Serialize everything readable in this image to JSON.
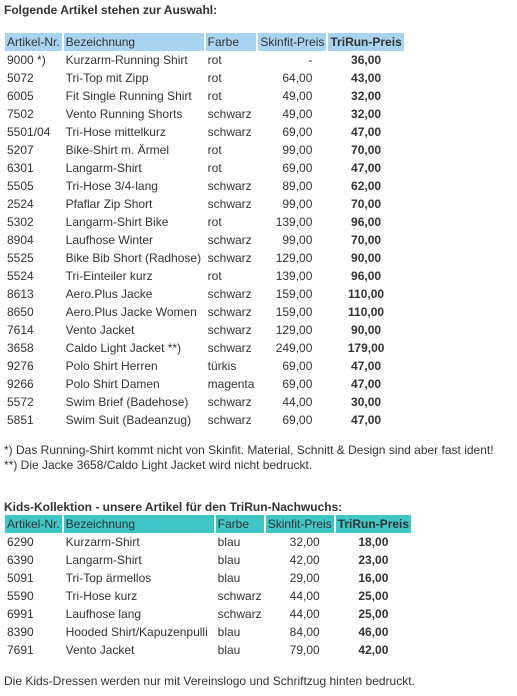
{
  "title1": "Folgende Artikel stehen zur Auswahl:",
  "table1": {
    "header": [
      "Artikel-Nr.",
      "Bezeichnung",
      "Farbe",
      "Skinfit-Preis",
      "TriRun-Preis"
    ],
    "rows": [
      [
        "9000 *)",
        "Kurzarm-Running Shirt",
        "rot",
        "-",
        "36,00"
      ],
      [
        "5072",
        "Tri-Top mit Zipp",
        "rot",
        "64,00",
        "43,00"
      ],
      [
        "6005",
        "Fit Single Running Shirt",
        "rot",
        "49,00",
        "32,00"
      ],
      [
        "7502",
        "Vento Running Shorts",
        "schwarz",
        "49,00",
        "32,00"
      ],
      [
        "5501/04",
        "Tri-Hose mittelkurz",
        "schwarz",
        "69,00",
        "47,00"
      ],
      [
        "5207",
        "Bike-Shirt m. Ärmel",
        "rot",
        "99,00",
        "70,00"
      ],
      [
        "6301",
        "Langarm-Shirt",
        "rot",
        "69,00",
        "47,00"
      ],
      [
        "5505",
        "Tri-Hose 3/4-lang",
        "schwarz",
        "89,00",
        "62,00"
      ],
      [
        "2524",
        "Pfaflar Zip Short",
        "schwarz",
        "99,00",
        "70,00"
      ],
      [
        "5302",
        "Langarm-Shirt Bike",
        "rot",
        "139,00",
        "96,00"
      ],
      [
        "8904",
        "Laufhose Winter",
        "schwarz",
        "99,00",
        "70,00"
      ],
      [
        "5525",
        "Bike Bib Short (Radhose)",
        "schwarz",
        "129,00",
        "90,00"
      ],
      [
        "5524",
        "Tri-Einteiler kurz",
        "rot",
        "139,00",
        "96,00"
      ],
      [
        "8613",
        "Aero.Plus Jacke",
        "schwarz",
        "159,00",
        "110,00"
      ],
      [
        "8650",
        "Aero.Plus Jacke Women",
        "schwarz",
        "159,00",
        "110,00"
      ],
      [
        "7614",
        "Vento Jacket",
        "schwarz",
        "129,00",
        "90,00"
      ],
      [
        "3658",
        "Caldo Light Jacket **)",
        "schwarz",
        "249,00",
        "179,00"
      ],
      [
        "9276",
        "Polo Shirt Herren",
        "türkis",
        "69,00",
        "47,00"
      ],
      [
        "9266",
        "Polo Shirt Damen",
        "magenta",
        "69,00",
        "47,00"
      ],
      [
        "5572",
        "Swim Brief (Badehose)",
        "schwarz",
        "44,00",
        "30,00"
      ],
      [
        "5851",
        "Swim Suit (Badeanzug)",
        "schwarz",
        "69,00",
        "47,00"
      ]
    ]
  },
  "notes": [
    "*) Das Running-Shirt kommt nicht von Skinfit. Material, Schnitt & Design sind aber fast ident!",
    "**) Die Jacke 3658/Caldo Light Jacket wird nicht bedruckt."
  ],
  "title2": "Kids-Kollektion - unsere Artikel für den TriRun-Nachwuchs:",
  "table2": {
    "header": [
      "Artikel-Nr.",
      "Bezeichnung",
      "Farbe",
      "Skinfit-Preis",
      "TriRun-Preis"
    ],
    "rows": [
      [
        "6290",
        "Kurzarm-Shirt",
        "blau",
        "32,00",
        "18,00"
      ],
      [
        "6390",
        "Langarm-Shirt",
        "blau",
        "42,00",
        "23,00"
      ],
      [
        "5091",
        "Tri-Top ärmellos",
        "blau",
        "29,00",
        "16,00"
      ],
      [
        "5590",
        "Tri-Hose kurz",
        "schwarz",
        "44,00",
        "25,00"
      ],
      [
        "6991",
        "Laufhose lang",
        "schwarz",
        "44,00",
        "25,00"
      ],
      [
        "8390",
        "Hooded Shirt/Kapuzenpulli",
        "blau",
        "84,00",
        "46,00"
      ],
      [
        "7691",
        "Vento Jacket",
        "blau",
        "79,00",
        "42,00"
      ]
    ]
  },
  "footer": "Die Kids-Dressen werden nur mit Vereinslogo und Schriftzug hinten bedruckt."
}
